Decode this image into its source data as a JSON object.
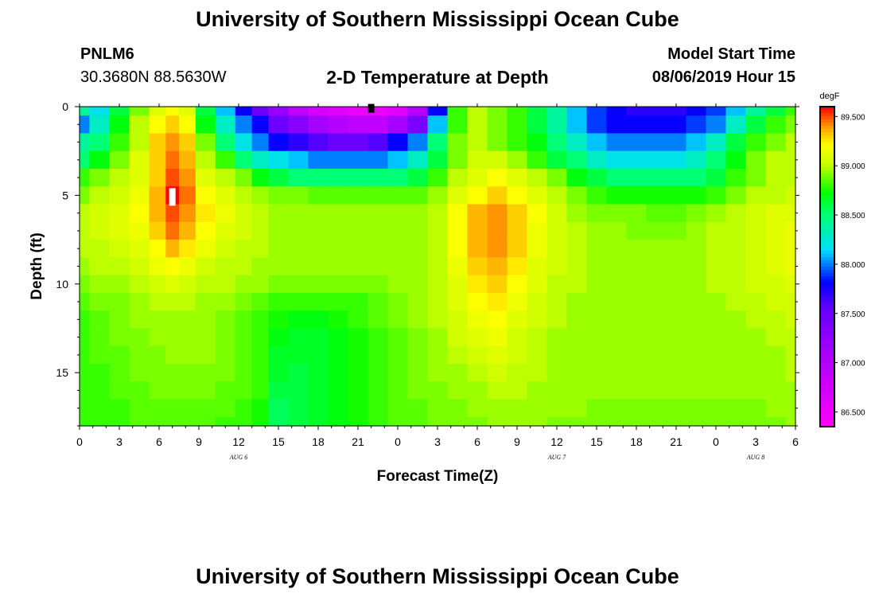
{
  "header": {
    "title": "University of Southern Mississippi Ocean Cube",
    "station_id": "PNLM6",
    "coordinates": "30.3680N 88.5630W",
    "plot_title": "2-D Temperature at Depth",
    "model_start_label": "Model Start Time",
    "model_start_value": "08/06/2019 Hour 15"
  },
  "footer": {
    "title": "University of Southern Mississippi Ocean Cube"
  },
  "chart_data": {
    "type": "heatmap",
    "xlabel": "Forecast Time(Z)",
    "ylabel": "Depth (ft)",
    "colorbar_unit": "degF",
    "xlim": [
      0,
      54
    ],
    "ylim": [
      0,
      18
    ],
    "y_inverted": true,
    "x_tick_labels": [
      "0",
      "3",
      "6",
      "9",
      "12",
      "15",
      "18",
      "21",
      "0",
      "3",
      "6",
      "9",
      "12",
      "15",
      "18",
      "21",
      "0",
      "3",
      "6"
    ],
    "y_ticks": [
      0,
      5,
      10,
      15
    ],
    "date_labels": [
      {
        "text": "AUG 6",
        "at_hours": 12
      },
      {
        "text": "AUG 7",
        "at_hours": 36
      },
      {
        "text": "AUG 8",
        "at_hours": 51
      }
    ],
    "colorbar_ticks": [
      "86.500",
      "87.000",
      "87.500",
      "88.000",
      "88.500",
      "89.000",
      "89.500"
    ],
    "colorbar_range": [
      86.35,
      89.6
    ],
    "grid": false,
    "notes_x_hours_since_00Z_Aug6": true,
    "x_hours": [
      0,
      1.5,
      3,
      4.5,
      6,
      7,
      8,
      9.5,
      11,
      12.5,
      13.5,
      15,
      16.5,
      18,
      19.5,
      21,
      22.5,
      24,
      25.5,
      27,
      28.5,
      30,
      31.5,
      33,
      34.5,
      36,
      37.5,
      39,
      40.5,
      42,
      43.5,
      45,
      46.5,
      48,
      49.5,
      51,
      52.5,
      54
    ],
    "depth_ft": [
      0,
      1,
      2,
      3,
      4,
      5,
      6,
      7,
      8,
      9,
      10,
      11,
      12,
      13,
      14,
      15,
      16,
      17,
      18
    ],
    "values_degF": [
      [
        88.4,
        88.2,
        88.6,
        88.9,
        89.1,
        89.2,
        89.1,
        88.6,
        88.1,
        87.8,
        87.5,
        87.2,
        86.9,
        86.7,
        86.6,
        86.5,
        86.5,
        86.6,
        87.0,
        87.8,
        88.8,
        89.0,
        88.9,
        88.8,
        88.6,
        88.4,
        88.1,
        87.9,
        87.8,
        87.7,
        87.7,
        87.7,
        87.8,
        87.9,
        88.1,
        88.4,
        88.6,
        88.8
      ],
      [
        88.0,
        88.3,
        88.7,
        89.0,
        89.2,
        89.3,
        89.2,
        88.7,
        88.3,
        88.0,
        87.8,
        87.5,
        87.3,
        87.1,
        87.0,
        86.9,
        86.9,
        87.1,
        87.4,
        88.1,
        88.8,
        89.0,
        88.9,
        88.8,
        88.6,
        88.4,
        88.1,
        87.9,
        87.8,
        87.8,
        87.8,
        87.8,
        87.9,
        88.0,
        88.3,
        88.6,
        88.8,
        88.9
      ],
      [
        88.4,
        88.5,
        88.8,
        89.0,
        89.3,
        89.4,
        89.3,
        88.9,
        88.5,
        88.2,
        88.0,
        87.8,
        87.7,
        87.6,
        87.5,
        87.5,
        87.6,
        87.8,
        88.0,
        88.5,
        88.9,
        89.0,
        88.9,
        88.8,
        88.7,
        88.5,
        88.3,
        88.1,
        88.0,
        88.0,
        88.0,
        88.0,
        88.1,
        88.3,
        88.6,
        88.8,
        88.9,
        89.0
      ],
      [
        88.5,
        88.7,
        88.9,
        89.1,
        89.3,
        89.45,
        89.35,
        89.0,
        88.8,
        88.5,
        88.3,
        88.2,
        88.1,
        88.0,
        88.0,
        88.0,
        88.0,
        88.1,
        88.3,
        88.6,
        88.9,
        89.05,
        89.05,
        88.95,
        88.8,
        88.6,
        88.5,
        88.3,
        88.2,
        88.2,
        88.2,
        88.2,
        88.3,
        88.5,
        88.7,
        88.9,
        89.0,
        89.0
      ],
      [
        88.8,
        88.9,
        89.0,
        89.1,
        89.3,
        89.5,
        89.4,
        89.1,
        89.0,
        88.9,
        88.7,
        88.6,
        88.5,
        88.5,
        88.5,
        88.5,
        88.5,
        88.5,
        88.6,
        88.8,
        89.0,
        89.1,
        89.2,
        89.1,
        89.0,
        88.9,
        88.7,
        88.6,
        88.5,
        88.5,
        88.5,
        88.5,
        88.5,
        88.6,
        88.8,
        88.9,
        89.0,
        89.0
      ],
      [
        88.9,
        89.0,
        89.05,
        89.15,
        89.35,
        89.6,
        89.45,
        89.2,
        89.1,
        89.0,
        88.95,
        88.9,
        88.9,
        88.85,
        88.85,
        88.85,
        88.85,
        88.85,
        88.85,
        88.95,
        89.1,
        89.2,
        89.3,
        89.2,
        89.1,
        89.0,
        88.9,
        88.8,
        88.75,
        88.75,
        88.75,
        88.75,
        88.75,
        88.8,
        88.9,
        89.0,
        89.0,
        89.05
      ],
      [
        89.0,
        89.05,
        89.1,
        89.2,
        89.35,
        89.5,
        89.4,
        89.25,
        89.15,
        89.05,
        89.0,
        88.95,
        88.95,
        88.95,
        88.95,
        88.95,
        88.95,
        88.95,
        88.95,
        89.0,
        89.2,
        89.35,
        89.4,
        89.3,
        89.2,
        89.05,
        88.95,
        88.9,
        88.9,
        88.9,
        88.85,
        88.85,
        88.9,
        88.95,
        89.0,
        89.05,
        89.1,
        89.1
      ],
      [
        89.0,
        89.05,
        89.1,
        89.15,
        89.3,
        89.45,
        89.35,
        89.2,
        89.1,
        89.05,
        89.0,
        88.95,
        88.95,
        88.95,
        88.95,
        88.95,
        88.95,
        88.95,
        88.95,
        89.0,
        89.2,
        89.35,
        89.4,
        89.3,
        89.15,
        89.05,
        89.0,
        88.95,
        88.95,
        88.9,
        88.9,
        88.9,
        88.95,
        89.0,
        89.0,
        89.05,
        89.1,
        89.15
      ],
      [
        89.0,
        89.0,
        89.05,
        89.1,
        89.2,
        89.35,
        89.25,
        89.15,
        89.05,
        89.0,
        89.0,
        88.95,
        88.95,
        88.95,
        88.95,
        88.95,
        88.95,
        88.95,
        88.95,
        89.0,
        89.2,
        89.35,
        89.4,
        89.3,
        89.15,
        89.05,
        89.0,
        88.95,
        88.95,
        88.95,
        88.95,
        88.95,
        88.95,
        89.0,
        89.0,
        89.05,
        89.1,
        89.15
      ],
      [
        88.95,
        89.0,
        89.0,
        89.05,
        89.15,
        89.2,
        89.15,
        89.05,
        89.0,
        89.0,
        88.95,
        88.95,
        88.95,
        88.95,
        88.95,
        88.95,
        88.95,
        88.95,
        88.95,
        89.0,
        89.15,
        89.3,
        89.35,
        89.25,
        89.1,
        89.05,
        89.0,
        88.95,
        88.95,
        88.95,
        88.95,
        88.95,
        88.95,
        89.0,
        89.0,
        89.05,
        89.1,
        89.15
      ],
      [
        88.9,
        88.95,
        88.95,
        89.0,
        89.05,
        89.1,
        89.05,
        89.0,
        89.0,
        88.95,
        88.95,
        88.9,
        88.9,
        88.9,
        88.9,
        88.9,
        88.9,
        88.95,
        88.95,
        89.0,
        89.1,
        89.25,
        89.3,
        89.2,
        89.1,
        89.0,
        89.0,
        88.95,
        88.95,
        88.95,
        88.95,
        88.95,
        88.95,
        89.0,
        89.0,
        89.05,
        89.05,
        89.1
      ],
      [
        88.85,
        88.9,
        88.9,
        88.95,
        89.0,
        89.0,
        89.0,
        88.95,
        88.95,
        88.9,
        88.85,
        88.8,
        88.8,
        88.8,
        88.8,
        88.8,
        88.85,
        88.9,
        88.95,
        89.0,
        89.1,
        89.2,
        89.25,
        89.15,
        89.05,
        89.0,
        88.95,
        88.95,
        88.95,
        88.95,
        88.95,
        88.95,
        88.95,
        88.95,
        89.0,
        89.0,
        89.05,
        89.05
      ],
      [
        88.8,
        88.85,
        88.9,
        88.95,
        88.95,
        88.95,
        88.95,
        88.95,
        88.9,
        88.85,
        88.8,
        88.75,
        88.7,
        88.7,
        88.75,
        88.8,
        88.85,
        88.9,
        88.95,
        89.0,
        89.05,
        89.15,
        89.2,
        89.1,
        89.05,
        89.0,
        88.95,
        88.95,
        88.95,
        88.95,
        88.95,
        88.95,
        88.95,
        88.95,
        88.95,
        89.0,
        89.0,
        89.05
      ],
      [
        88.8,
        88.85,
        88.9,
        88.9,
        88.95,
        88.95,
        88.95,
        88.95,
        88.9,
        88.85,
        88.8,
        88.7,
        88.65,
        88.65,
        88.7,
        88.75,
        88.8,
        88.85,
        88.9,
        88.95,
        89.05,
        89.1,
        89.15,
        89.05,
        89.0,
        88.95,
        88.95,
        88.95,
        88.95,
        88.95,
        88.95,
        88.95,
        88.95,
        88.95,
        88.95,
        88.95,
        89.0,
        89.0
      ],
      [
        88.8,
        88.85,
        88.85,
        88.9,
        88.9,
        88.95,
        88.95,
        88.95,
        88.9,
        88.85,
        88.8,
        88.65,
        88.65,
        88.65,
        88.7,
        88.75,
        88.8,
        88.85,
        88.9,
        88.95,
        89.0,
        89.05,
        89.1,
        89.05,
        89.0,
        88.95,
        88.95,
        88.95,
        88.95,
        88.95,
        88.95,
        88.95,
        88.95,
        88.95,
        88.95,
        88.95,
        88.95,
        89.0
      ],
      [
        88.8,
        88.8,
        88.85,
        88.9,
        88.9,
        88.9,
        88.9,
        88.9,
        88.9,
        88.85,
        88.8,
        88.65,
        88.6,
        88.65,
        88.7,
        88.75,
        88.8,
        88.85,
        88.9,
        88.95,
        88.95,
        89.0,
        89.05,
        89.0,
        89.0,
        88.95,
        88.95,
        88.95,
        88.95,
        88.95,
        88.95,
        88.95,
        88.95,
        88.95,
        88.95,
        88.95,
        88.95,
        89.0
      ],
      [
        88.8,
        88.8,
        88.85,
        88.85,
        88.9,
        88.9,
        88.9,
        88.9,
        88.85,
        88.85,
        88.8,
        88.6,
        88.6,
        88.65,
        88.7,
        88.75,
        88.8,
        88.85,
        88.9,
        88.9,
        88.95,
        88.95,
        89.0,
        89.0,
        88.95,
        88.95,
        88.95,
        88.95,
        88.95,
        88.95,
        88.95,
        88.95,
        88.95,
        88.95,
        88.95,
        88.95,
        88.95,
        88.95
      ],
      [
        88.8,
        88.8,
        88.8,
        88.85,
        88.85,
        88.85,
        88.85,
        88.85,
        88.85,
        88.8,
        88.75,
        88.55,
        88.6,
        88.65,
        88.7,
        88.75,
        88.8,
        88.85,
        88.85,
        88.9,
        88.9,
        88.95,
        88.95,
        88.95,
        88.95,
        88.95,
        88.95,
        88.9,
        88.9,
        88.9,
        88.9,
        88.9,
        88.9,
        88.9,
        88.9,
        88.9,
        88.95,
        88.95
      ],
      [
        88.8,
        88.8,
        88.8,
        88.85,
        88.85,
        88.85,
        88.85,
        88.85,
        88.8,
        88.8,
        88.75,
        88.55,
        88.6,
        88.65,
        88.7,
        88.75,
        88.8,
        88.85,
        88.85,
        88.9,
        88.9,
        88.9,
        88.95,
        88.95,
        88.95,
        88.9,
        88.9,
        88.9,
        88.9,
        88.9,
        88.9,
        88.9,
        88.9,
        88.9,
        88.9,
        88.9,
        88.9,
        88.95
      ]
    ],
    "markers": [
      {
        "label": "max",
        "x_hours": 7,
        "depth_ft": 5,
        "color": "#ffffff"
      },
      {
        "label": "min",
        "x_hours": 22,
        "depth_ft": 0.25,
        "color": "#000000"
      }
    ]
  }
}
